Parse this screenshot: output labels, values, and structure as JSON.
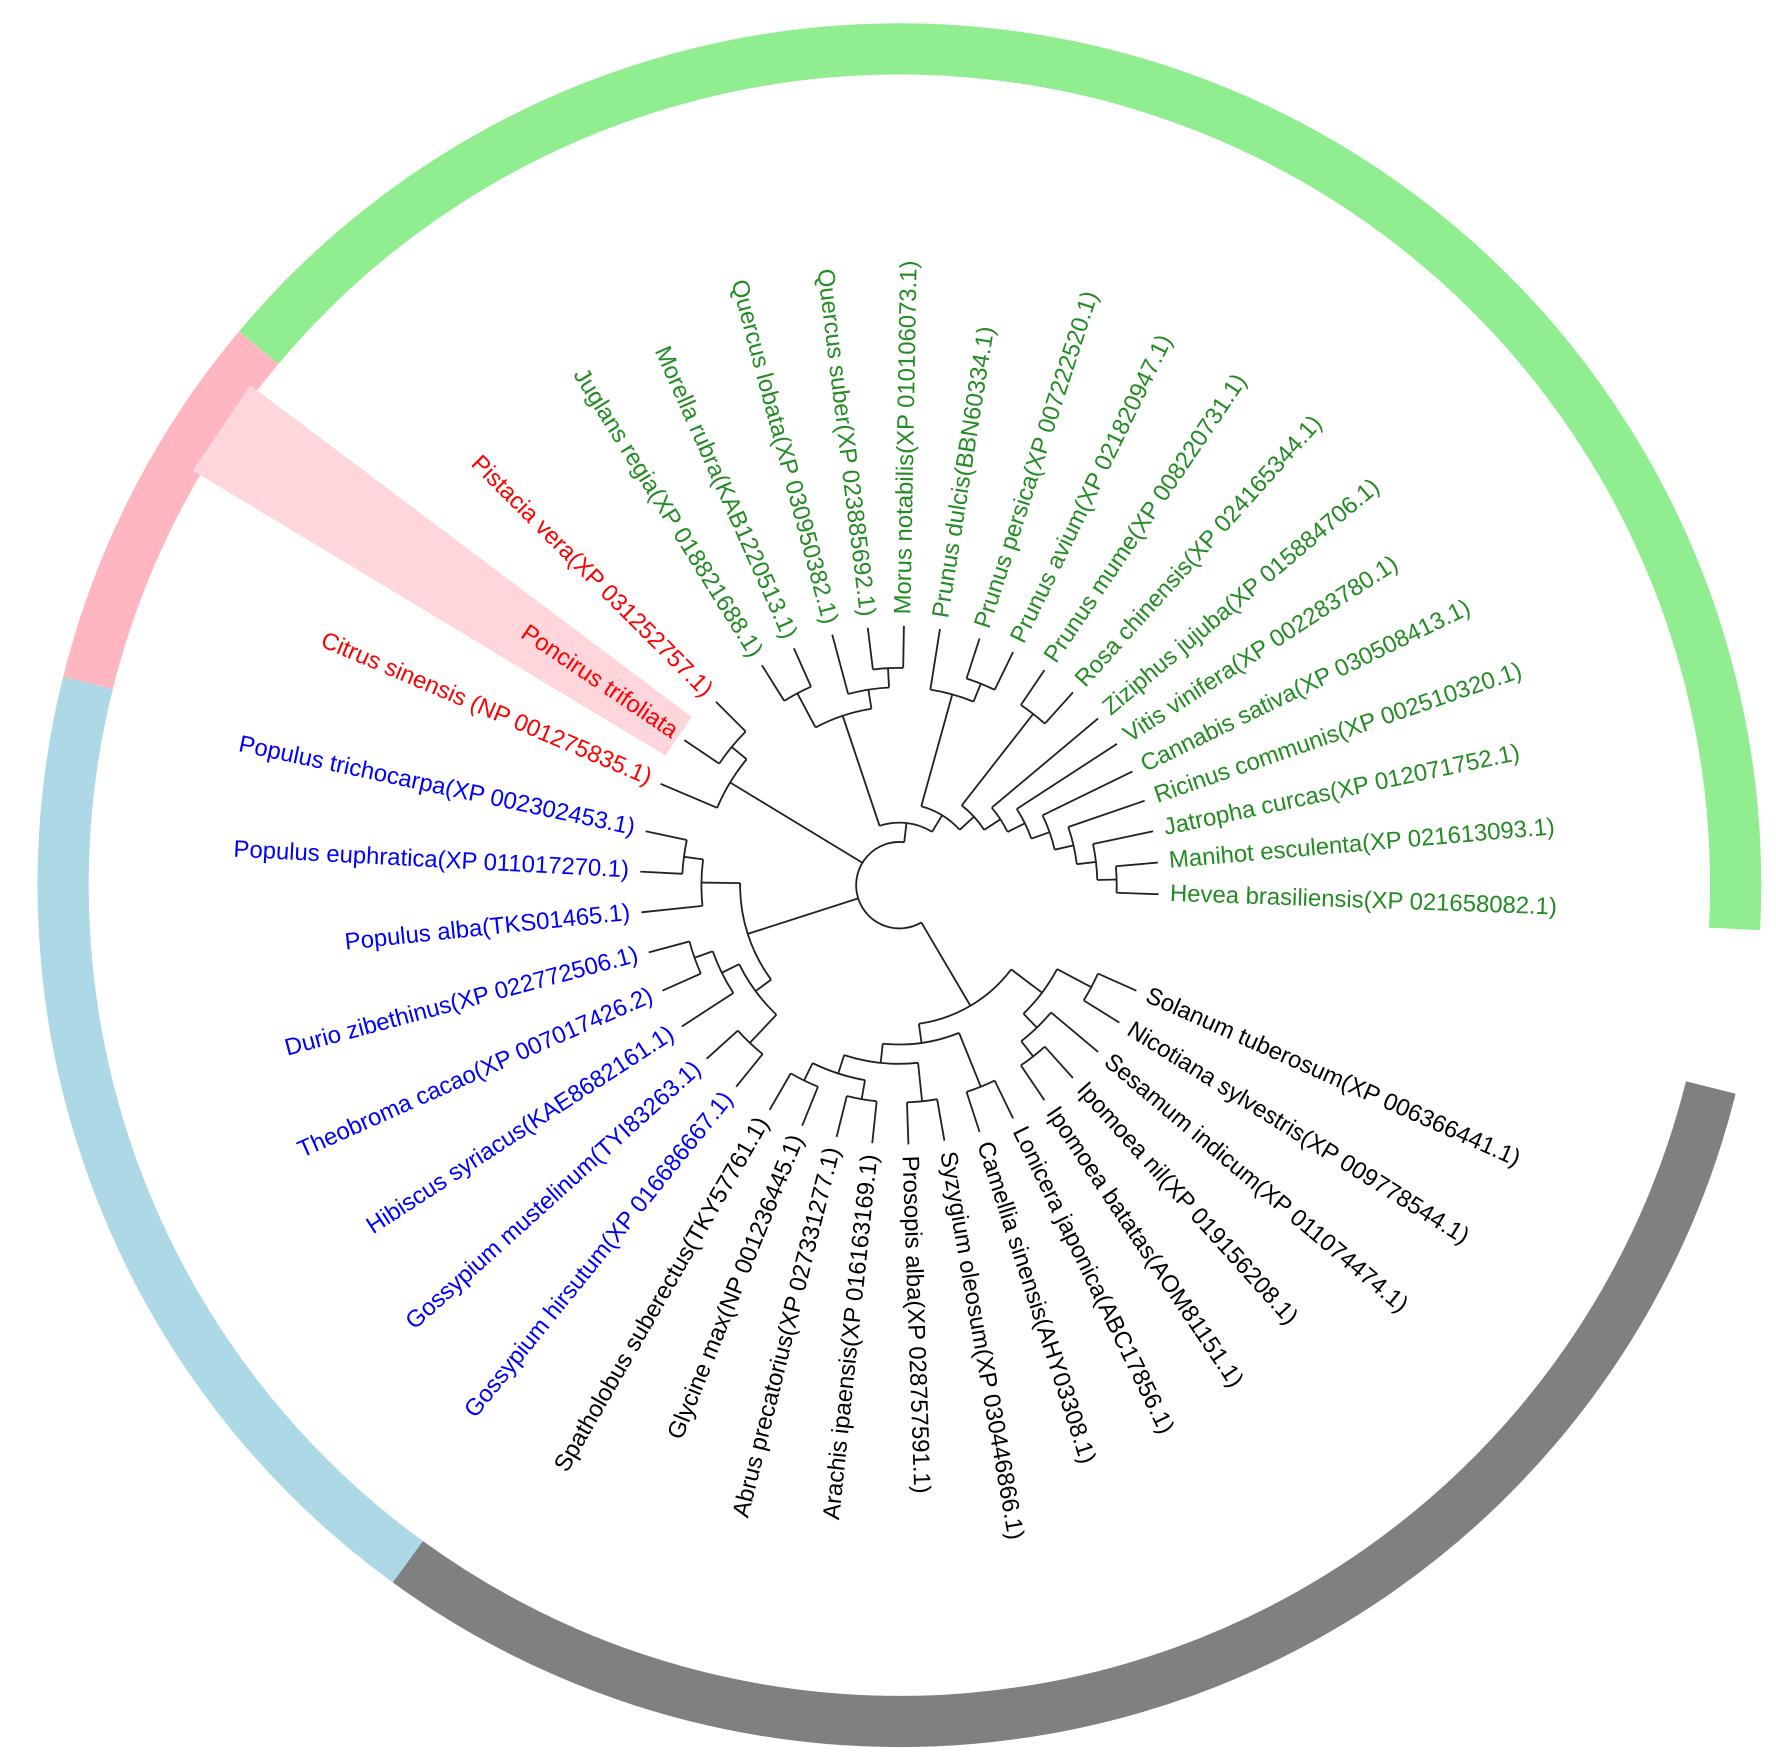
{
  "groups": [
    {
      "color": "#000000",
      "ring_color": "#808080",
      "leaves": [
        "Solanum tuberosum(XP 006366441.1)",
        "Nicotiana sylvestris(XP 009778544.1)",
        "Sesamum indicum(XP 011074474.1)",
        "Ipomoea nil(XP 019156208.1)",
        "Ipomoea batatas(AOM81151.1)",
        "Lonicera japonica(ABC17856.1)",
        "Camellia sinensis(AHY03308.1)",
        "Syzygium oleosum(XP 030446866.1)",
        "Prosopis alba(XP 028757591.1)",
        "Arachis ipaensis(XP 016163169.1)",
        "Abrus precatorius(XP 027331277.1)",
        "Glycine max(NP 001236445.1)",
        "Spatholobus suberectus(TKY57761.1)"
      ]
    },
    {
      "color": "#0000ff",
      "ring_color": "#add8e6",
      "leaves": [
        "Gossypium hirsutum(XP 016686667.1)",
        "Gossypium mustelinum(TYI83263.1)",
        "Hibiscus syriacus(KAE8682161.1)",
        "Theobroma cacao(XP 007017426.2)",
        "Durio zibethinus(XP 022772506.1)",
        "Populus alba(TKS01465.1)",
        "Populus euphratica(XP 011017270.1)",
        "Populus trichocarpa(XP 002302453.1)"
      ]
    },
    {
      "color": "#ff0000",
      "ring_color": "#ffb6c1",
      "leaves": [
        "Citrus sinensis (NP 001275835.1)",
        "Poncirus trifoliata",
        "Pistacia vera(XP 031252757.1)"
      ]
    },
    {
      "color": "#228b22",
      "ring_color": "#90ee90",
      "leaves": [
        "Juglans regia(XP 018821688.1)",
        "Morella rubra(KAB1220513.1)",
        "Quercus lobata(XP 030950382.1)",
        "Quercus suber(XP 023885692.1)",
        "Morus notabilis(XP 010106073.1)",
        "Prunus dulcis(BBN60334.1)",
        "Prunus persica(XP 007222520.1)",
        "Prunus avium(XP 021820947.1)",
        "Prunus mume(XP 008220731.1)",
        "Rosa chinensis(XP 024165344.1)",
        "Ziziphus jujuba(XP 015884706.1)",
        "Vitis vinifera(XP 002283780.1)",
        "Cannabis sativa(XP 030508413.1)",
        "Ricinus communis(XP 002510320.1)",
        "Jatropha curcas(XP 012071752.1)",
        "Manihot esculenta(XP 021613093.1)",
        "Hevea brasiliensis(XP 021658082.1)"
      ]
    }
  ]
}
